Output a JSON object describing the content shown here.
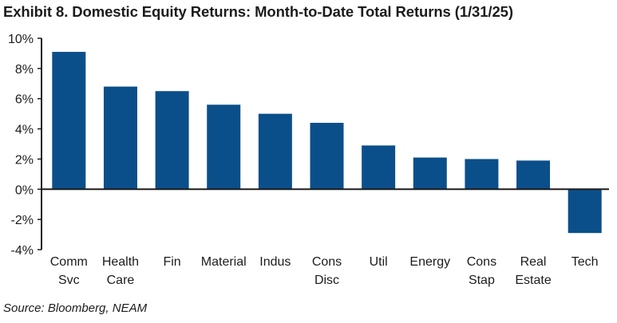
{
  "chart_data": {
    "type": "bar",
    "title": "Exhibit 8. Domestic Equity Returns: Month-to-Date Total Returns (1/31/25)",
    "categories": [
      [
        "Comm",
        "Svc"
      ],
      [
        "Health",
        "Care"
      ],
      [
        "Fin"
      ],
      [
        "Material"
      ],
      [
        "Indus"
      ],
      [
        "Cons",
        "Disc"
      ],
      [
        "Util"
      ],
      [
        "Energy"
      ],
      [
        "Cons",
        "Stap"
      ],
      [
        "Real",
        "Estate"
      ],
      [
        "Tech"
      ]
    ],
    "values": [
      9.1,
      6.8,
      6.5,
      5.6,
      5.0,
      4.4,
      2.9,
      2.1,
      2.0,
      1.9,
      -2.9
    ],
    "ylim": [
      -4,
      10
    ],
    "yticks": [
      -4,
      -2,
      0,
      2,
      4,
      6,
      8,
      10
    ],
    "ytick_labels": [
      "-4%",
      "-2%",
      "0%",
      "2%",
      "4%",
      "6%",
      "8%",
      "10%"
    ],
    "xlabel": "",
    "ylabel": "",
    "grid": false,
    "bar_color": "#0b4f8a",
    "axis_color": "#1c1c1c"
  },
  "source": "Source: Bloomberg, NEAM"
}
